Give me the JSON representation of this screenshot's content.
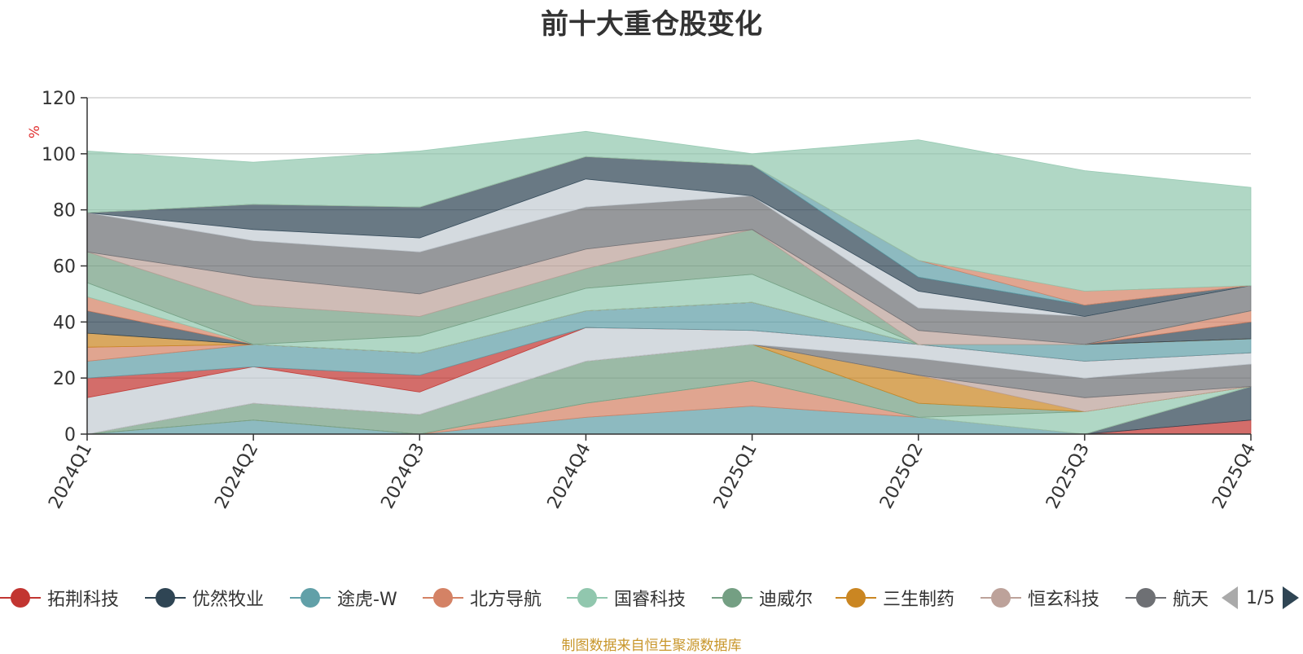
{
  "chart_data": {
    "type": "area",
    "title": "前十大重仓股变化",
    "xlabel": "",
    "ylabel": "%",
    "ylim": [
      0,
      120
    ],
    "yticks": [
      0,
      20,
      40,
      60,
      80,
      100,
      120
    ],
    "grid": true,
    "categories": [
      "2024Q1",
      "2024Q2",
      "2024Q3",
      "2024Q4",
      "2025Q1",
      "2025Q2",
      "2025Q3",
      "2025Q4"
    ],
    "stacking": "cumulative",
    "series": [
      {
        "name": "拓荆科技",
        "color": "#c23531",
        "values": [
          0,
          0,
          0,
          0,
          0,
          0,
          0,
          5
        ]
      },
      {
        "name": "优然牧业",
        "color": "#2f4554",
        "values": [
          0,
          0,
          0,
          0,
          0,
          0,
          0,
          12
        ]
      },
      {
        "name": "途虎-W",
        "color": "#61a0a8",
        "values": [
          0,
          5,
          0,
          6,
          10,
          6,
          0,
          0
        ]
      },
      {
        "name": "北方导航",
        "color": "#d48265",
        "values": [
          0,
          0,
          0,
          5,
          9,
          0,
          0,
          0
        ]
      },
      {
        "name": "国睿科技",
        "color": "#91c7ae",
        "values": [
          0,
          0,
          0,
          0,
          0,
          0,
          8,
          0
        ]
      },
      {
        "name": "迪威尔",
        "color": "#749f83",
        "values": [
          0,
          6,
          7,
          15,
          13,
          5,
          0,
          0
        ]
      },
      {
        "name": "三生制药",
        "color": "#ca8622",
        "values": [
          0,
          0,
          0,
          0,
          0,
          10,
          0,
          0
        ]
      },
      {
        "name": "恒玄科技",
        "color": "#bda29a",
        "values": [
          0,
          0,
          0,
          0,
          0,
          0,
          5,
          0
        ]
      },
      {
        "name": "航天",
        "color": "#6e7074",
        "values": [
          0,
          0,
          0,
          0,
          0,
          6,
          7,
          8
        ]
      },
      {
        "name": "",
        "color": "#c4ccd3",
        "values": [
          13,
          13,
          8,
          12,
          5,
          5,
          6,
          4
        ]
      },
      {
        "name": "",
        "color": "#c23531",
        "values": [
          7,
          0,
          6,
          0,
          0,
          0,
          0,
          0
        ]
      },
      {
        "name": "",
        "color": "#61a0a8",
        "values": [
          6,
          8,
          8,
          6,
          10,
          0,
          6,
          5
        ]
      },
      {
        "name": "",
        "color": "#d48265",
        "values": [
          5,
          0,
          0,
          0,
          0,
          0,
          0,
          0
        ]
      },
      {
        "name": "",
        "color": "#ca8622",
        "values": [
          5,
          0,
          0,
          0,
          0,
          0,
          0,
          0
        ]
      },
      {
        "name": "",
        "color": "#2f4554",
        "values": [
          8,
          0,
          0,
          0,
          0,
          0,
          0,
          6
        ]
      },
      {
        "name": "",
        "color": "#d48265",
        "values": [
          5,
          0,
          0,
          0,
          0,
          0,
          0,
          4
        ]
      },
      {
        "name": "",
        "color": "#91c7ae",
        "values": [
          5,
          0,
          6,
          8,
          10,
          0,
          0,
          0
        ]
      },
      {
        "name": "",
        "color": "#749f83",
        "values": [
          11,
          14,
          7,
          7,
          16,
          0,
          0,
          0
        ]
      },
      {
        "name": "",
        "color": "#bda29a",
        "values": [
          0,
          10,
          8,
          7,
          0,
          5,
          0,
          0
        ]
      },
      {
        "name": "",
        "color": "#6e7074",
        "values": [
          14,
          13,
          15,
          15,
          12,
          8,
          10,
          9
        ]
      },
      {
        "name": "",
        "color": "#c4ccd3",
        "values": [
          0,
          4,
          5,
          10,
          0,
          6,
          0,
          0
        ]
      },
      {
        "name": "",
        "color": "#2f4554",
        "values": [
          0,
          9,
          11,
          8,
          11,
          5,
          4,
          0
        ]
      },
      {
        "name": "",
        "color": "#61a0a8",
        "values": [
          0,
          0,
          0,
          0,
          0,
          6,
          0,
          0
        ]
      },
      {
        "name": "",
        "color": "#d48265",
        "values": [
          0,
          0,
          0,
          0,
          0,
          0,
          5,
          0
        ]
      },
      {
        "name": "",
        "color": "#91c7ae",
        "values": [
          22,
          15,
          20,
          9,
          4,
          43,
          43,
          35
        ]
      }
    ]
  },
  "legend": {
    "items": [
      {
        "label": "拓荆科技",
        "color": "#c23531"
      },
      {
        "label": "优然牧业",
        "color": "#2f4554"
      },
      {
        "label": "途虎-W",
        "color": "#61a0a8"
      },
      {
        "label": "北方导航",
        "color": "#d48265"
      },
      {
        "label": "国睿科技",
        "color": "#91c7ae"
      },
      {
        "label": "迪威尔",
        "color": "#749f83"
      },
      {
        "label": "三生制药",
        "color": "#ca8622"
      },
      {
        "label": "恒玄科技",
        "color": "#bda29a"
      },
      {
        "label": "航天",
        "color": "#6e7074"
      }
    ],
    "page_indicator": "1/5"
  },
  "source_note": "制图数据来自恒生聚源数据库"
}
